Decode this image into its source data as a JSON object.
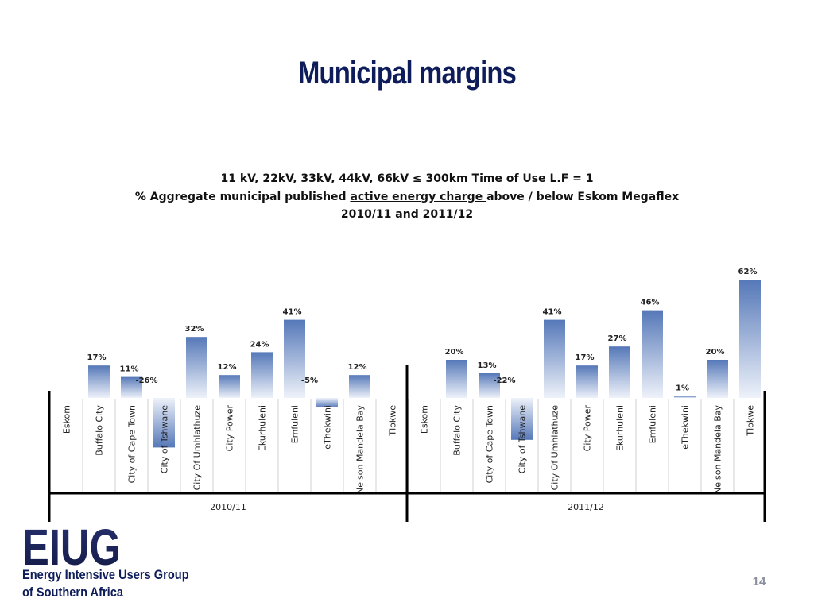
{
  "slide": {
    "title": "Municipal margins",
    "page_number": "14"
  },
  "logo": {
    "letters": "EIUG",
    "line1": "Energy Intensive Users Group",
    "line2": "of Southern Africa"
  },
  "chart_data": {
    "type": "bar",
    "title_lines": [
      "11 kV, 22kV, 33kV, 44kV, 66kV ≤ 300km Time of Use L.F = 1",
      "% Aggregate municipal published active energy charge above / below Eskom Megaflex",
      "2010/11 and 2011/12"
    ],
    "title_line2_parts": {
      "before": "% Aggregate municipal published ",
      "underlined": "active energy charge ",
      "after": "above / below Eskom Megaflex"
    },
    "categories": [
      "Eskom",
      "Buffalo City",
      "City of Cape Town",
      "City of Tshwane",
      "City Of Umhlathuze",
      "City Power",
      "Ekurhuleni",
      "Emfuleni",
      "eThekwini",
      "Nelson Mandela Bay",
      "Tlokwe"
    ],
    "groups": [
      "2010/11",
      "2011/12"
    ],
    "series": [
      {
        "values": [
          null,
          17,
          11,
          -26,
          32,
          12,
          24,
          41,
          -5,
          12,
          null
        ],
        "labels": [
          "",
          "17%",
          "11%",
          "-26%",
          "32%",
          "12%",
          "24%",
          "41%",
          "-5%",
          "12%",
          ""
        ]
      },
      {
        "values": [
          null,
          20,
          13,
          -22,
          41,
          17,
          27,
          46,
          1,
          20,
          62
        ],
        "labels": [
          "",
          "20%",
          "13%",
          "-22%",
          "41%",
          "17%",
          "27%",
          "46%",
          "1%",
          "20%",
          "62%"
        ]
      }
    ],
    "unit": "%",
    "bar_color_top": "#5578b8",
    "bar_color_bottom": "#eef2fa",
    "gridlines": false
  }
}
